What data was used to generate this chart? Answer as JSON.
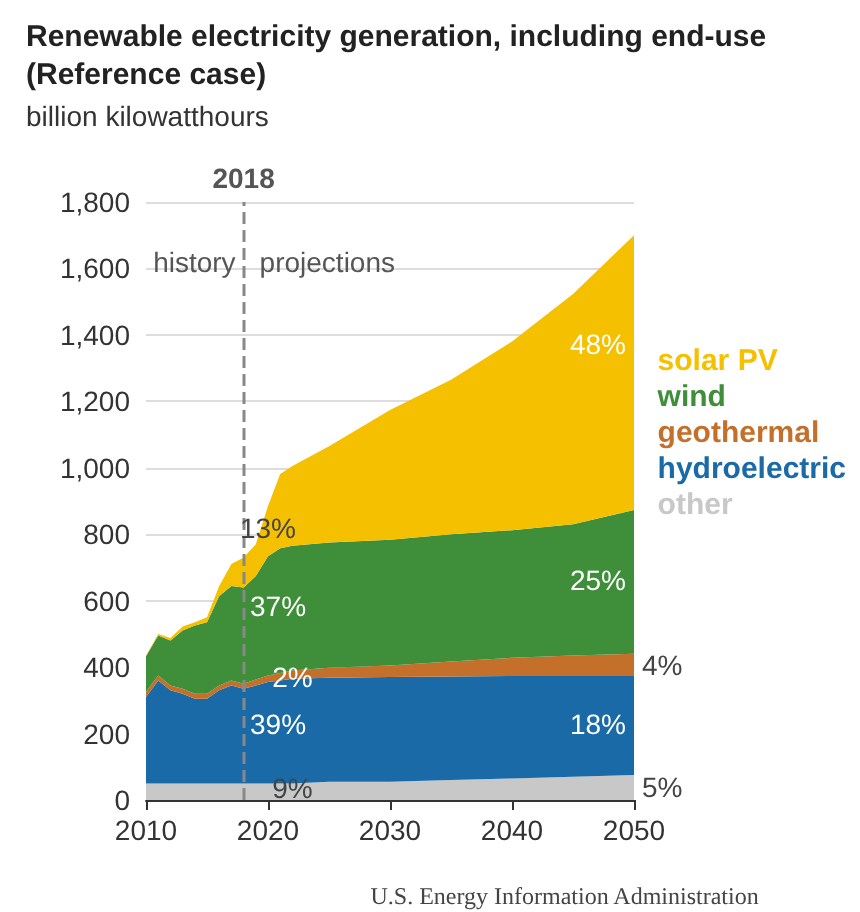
{
  "chart_data": {
    "type": "area",
    "stacked": true,
    "title": "Renewable electricity generation, including end-use (Reference case)",
    "subtitle": "billion kilowatthours",
    "x": [
      2010,
      2011,
      2012,
      2013,
      2014,
      2015,
      2016,
      2017,
      2018,
      2019,
      2020,
      2021,
      2022,
      2025,
      2030,
      2035,
      2040,
      2045,
      2050
    ],
    "series": [
      {
        "name": "other",
        "color": "#c8c8c8",
        "values": [
          50,
          50,
          50,
          50,
          50,
          50,
          50,
          50,
          50,
          50,
          50,
          50,
          50,
          55,
          55,
          60,
          65,
          70,
          75
        ]
      },
      {
        "name": "hydroelectric",
        "color": "#1a6aa8",
        "values": [
          260,
          310,
          280,
          270,
          255,
          255,
          280,
          295,
          285,
          295,
          305,
          310,
          315,
          313,
          315,
          312,
          308,
          303,
          298
        ]
      },
      {
        "name": "geothermal",
        "color": "#c4702a",
        "values": [
          15,
          15,
          15,
          15,
          15,
          15,
          15,
          15,
          15,
          18,
          20,
          22,
          25,
          30,
          35,
          45,
          55,
          62,
          67
        ]
      },
      {
        "name": "wind",
        "color": "#3f8f3a",
        "values": [
          108,
          120,
          135,
          175,
          205,
          215,
          269,
          284,
          290,
          311,
          359,
          376,
          375,
          377,
          378,
          383,
          384,
          395,
          433
        ]
      },
      {
        "name": "solar PV",
        "color": "#f5c000",
        "values": [
          2,
          5,
          8,
          12,
          10,
          15,
          30,
          66,
          90,
          96,
          151,
          223,
          240,
          290,
          391,
          465,
          568,
          693,
          827
        ]
      }
    ],
    "xlim": [
      2010,
      2050
    ],
    "xticks": [
      2010,
      2020,
      2030,
      2040,
      2050
    ],
    "ylim": [
      0,
      1800
    ],
    "yticks": [
      0,
      200,
      400,
      600,
      800,
      {
        "value": 1000,
        "label": "1,000"
      },
      {
        "value": 1200,
        "label": "1,200"
      },
      {
        "value": 1400,
        "label": "1,400"
      },
      {
        "value": 1600,
        "label": "1,600"
      },
      {
        "value": 1800,
        "label": "1,800"
      }
    ],
    "grid": "y",
    "legend": "right",
    "ref_lines": [
      {
        "axis": "x",
        "value": 2018,
        "label": "2018",
        "color": "#888888",
        "line_style": "dashed"
      }
    ],
    "annotations": [
      "history",
      "projections",
      {
        "text": "13%",
        "x": 2020,
        "y": 820
      },
      "37%",
      {
        "text": "2%",
        "x": 2022,
        "y": 370
      },
      "39%",
      {
        "text": "9%",
        "x": 2022,
        "y": 35
      },
      "48%",
      "25%",
      "18%",
      {
        "text": "4%",
        "x": 2050,
        "y": 407
      },
      {
        "text": "5%",
        "x": 2050,
        "y": 38
      },
      "U.S. Energy Information Administration"
    ]
  }
}
